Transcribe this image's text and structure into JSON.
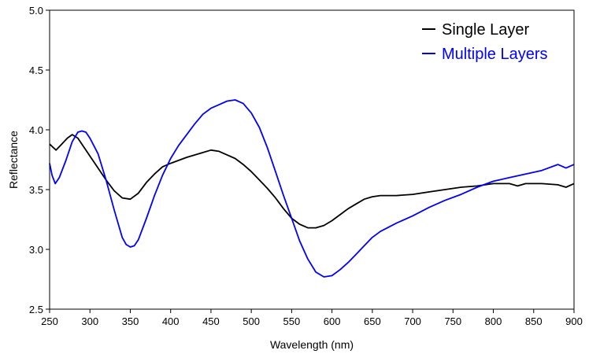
{
  "chart_data": {
    "type": "line",
    "title": "",
    "xlabel": "Wavelength (nm)",
    "ylabel": "Reflectance",
    "xlim": [
      250,
      900
    ],
    "ylim": [
      2.5,
      5.0
    ],
    "x_ticks": [
      "250",
      "300",
      "350",
      "400",
      "450",
      "500",
      "550",
      "600",
      "650",
      "700",
      "750",
      "800",
      "850",
      "900"
    ],
    "y_ticks": [
      "2.5",
      "3.0",
      "3.5",
      "4.0",
      "4.5",
      "5.0"
    ],
    "grid": false,
    "legend_position": "top-right",
    "series": [
      {
        "name": "Single Layer",
        "color": "#000000",
        "points": [
          [
            250,
            3.88
          ],
          [
            258,
            3.83
          ],
          [
            265,
            3.88
          ],
          [
            272,
            3.93
          ],
          [
            278,
            3.96
          ],
          [
            285,
            3.93
          ],
          [
            290,
            3.88
          ],
          [
            300,
            3.78
          ],
          [
            310,
            3.68
          ],
          [
            320,
            3.58
          ],
          [
            330,
            3.49
          ],
          [
            340,
            3.43
          ],
          [
            350,
            3.42
          ],
          [
            360,
            3.47
          ],
          [
            370,
            3.56
          ],
          [
            380,
            3.63
          ],
          [
            390,
            3.69
          ],
          [
            400,
            3.72
          ],
          [
            420,
            3.77
          ],
          [
            440,
            3.81
          ],
          [
            450,
            3.83
          ],
          [
            460,
            3.82
          ],
          [
            470,
            3.79
          ],
          [
            480,
            3.76
          ],
          [
            490,
            3.71
          ],
          [
            500,
            3.65
          ],
          [
            510,
            3.58
          ],
          [
            520,
            3.51
          ],
          [
            530,
            3.43
          ],
          [
            540,
            3.34
          ],
          [
            550,
            3.26
          ],
          [
            560,
            3.21
          ],
          [
            570,
            3.18
          ],
          [
            580,
            3.18
          ],
          [
            590,
            3.2
          ],
          [
            600,
            3.24
          ],
          [
            610,
            3.29
          ],
          [
            620,
            3.34
          ],
          [
            630,
            3.38
          ],
          [
            640,
            3.42
          ],
          [
            650,
            3.44
          ],
          [
            660,
            3.45
          ],
          [
            680,
            3.45
          ],
          [
            700,
            3.46
          ],
          [
            720,
            3.48
          ],
          [
            740,
            3.5
          ],
          [
            760,
            3.52
          ],
          [
            780,
            3.53
          ],
          [
            800,
            3.55
          ],
          [
            820,
            3.55
          ],
          [
            830,
            3.53
          ],
          [
            840,
            3.55
          ],
          [
            860,
            3.55
          ],
          [
            880,
            3.54
          ],
          [
            890,
            3.52
          ],
          [
            900,
            3.55
          ]
        ]
      },
      {
        "name": "Multiple Layers",
        "color": "#0000ff",
        "points": [
          [
            250,
            3.72
          ],
          [
            253,
            3.62
          ],
          [
            257,
            3.55
          ],
          [
            262,
            3.6
          ],
          [
            270,
            3.74
          ],
          [
            278,
            3.9
          ],
          [
            285,
            3.98
          ],
          [
            290,
            3.99
          ],
          [
            295,
            3.98
          ],
          [
            300,
            3.93
          ],
          [
            310,
            3.8
          ],
          [
            320,
            3.58
          ],
          [
            330,
            3.33
          ],
          [
            340,
            3.1
          ],
          [
            345,
            3.04
          ],
          [
            350,
            3.02
          ],
          [
            355,
            3.03
          ],
          [
            360,
            3.08
          ],
          [
            370,
            3.26
          ],
          [
            380,
            3.45
          ],
          [
            390,
            3.62
          ],
          [
            400,
            3.76
          ],
          [
            410,
            3.87
          ],
          [
            420,
            3.96
          ],
          [
            430,
            4.05
          ],
          [
            440,
            4.13
          ],
          [
            450,
            4.18
          ],
          [
            460,
            4.21
          ],
          [
            470,
            4.24
          ],
          [
            480,
            4.25
          ],
          [
            490,
            4.22
          ],
          [
            500,
            4.14
          ],
          [
            510,
            4.02
          ],
          [
            520,
            3.85
          ],
          [
            530,
            3.65
          ],
          [
            540,
            3.45
          ],
          [
            550,
            3.26
          ],
          [
            560,
            3.07
          ],
          [
            570,
            2.92
          ],
          [
            580,
            2.81
          ],
          [
            590,
            2.77
          ],
          [
            600,
            2.78
          ],
          [
            610,
            2.83
          ],
          [
            620,
            2.89
          ],
          [
            630,
            2.96
          ],
          [
            640,
            3.03
          ],
          [
            650,
            3.1
          ],
          [
            660,
            3.15
          ],
          [
            680,
            3.22
          ],
          [
            700,
            3.28
          ],
          [
            720,
            3.35
          ],
          [
            740,
            3.41
          ],
          [
            760,
            3.46
          ],
          [
            780,
            3.52
          ],
          [
            800,
            3.57
          ],
          [
            820,
            3.6
          ],
          [
            840,
            3.63
          ],
          [
            860,
            3.66
          ],
          [
            880,
            3.71
          ],
          [
            890,
            3.68
          ],
          [
            900,
            3.71
          ]
        ]
      }
    ]
  }
}
